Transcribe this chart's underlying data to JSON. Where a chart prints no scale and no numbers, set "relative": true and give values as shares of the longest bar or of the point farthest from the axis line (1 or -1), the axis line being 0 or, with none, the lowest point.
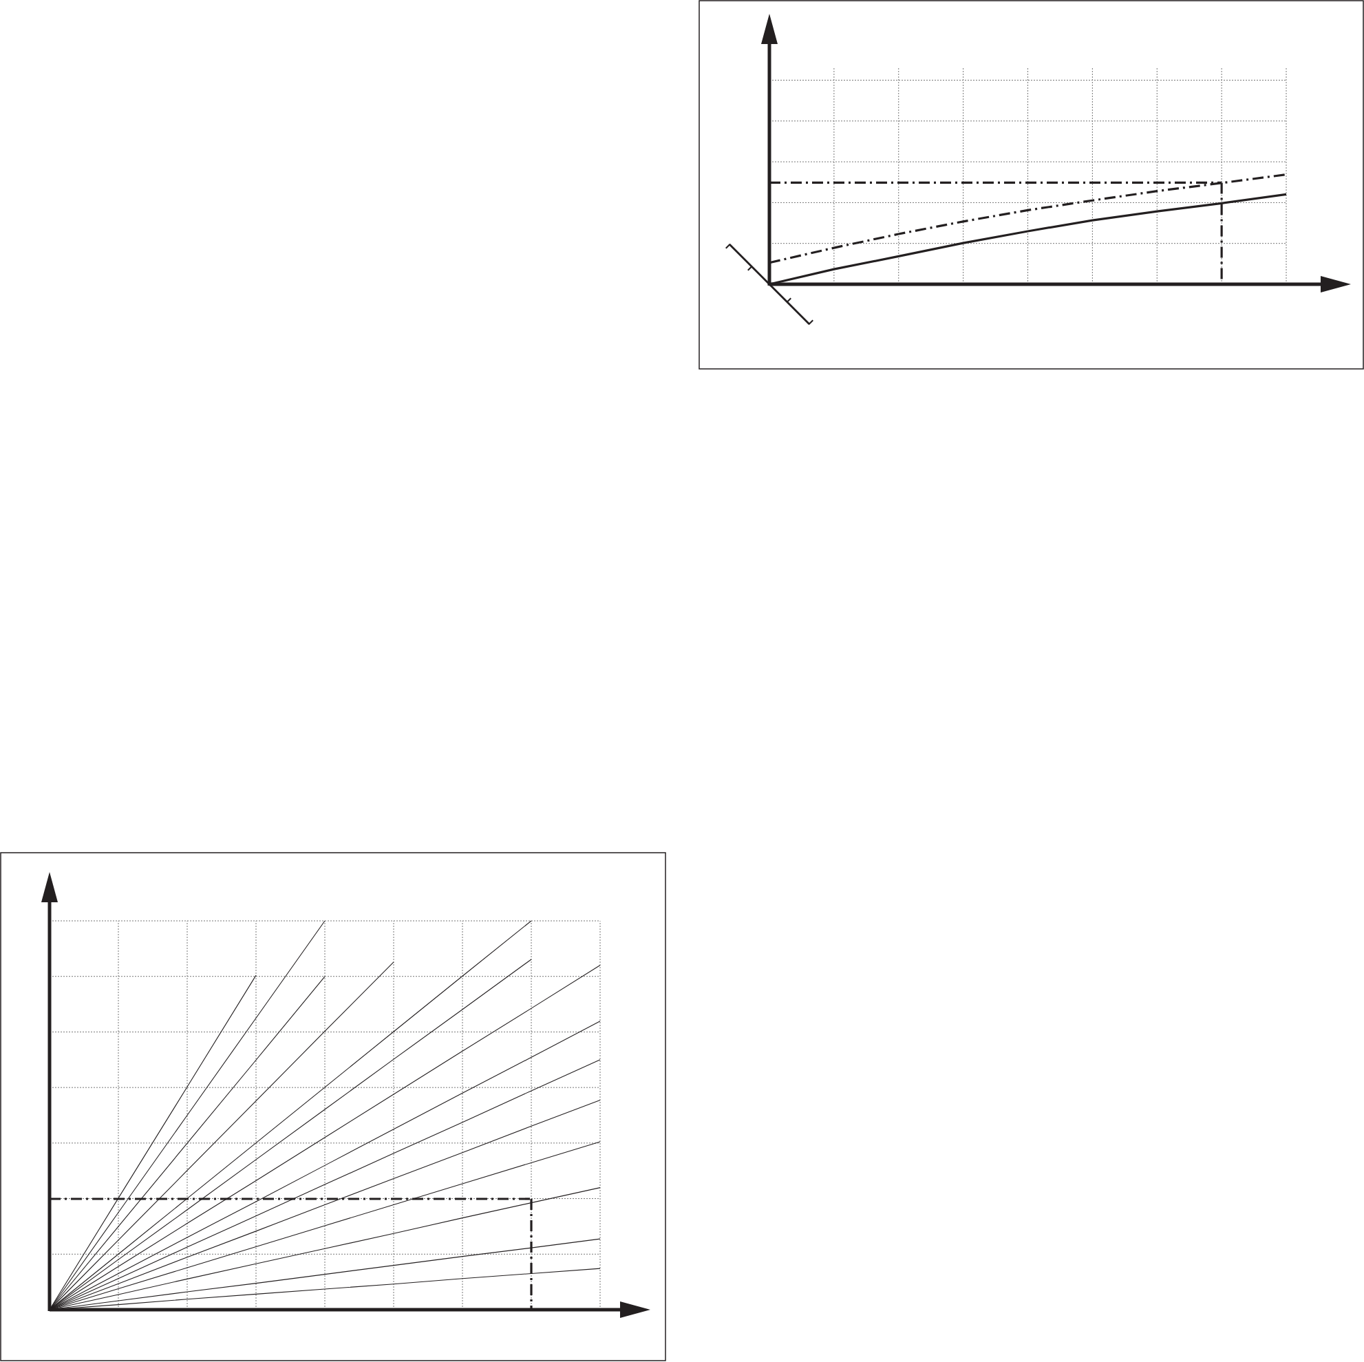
{
  "chart_data": [
    {
      "type": "line",
      "relative": true,
      "categories": [
        null,
        null,
        null,
        null,
        null,
        null,
        null,
        null,
        null
      ],
      "grid": true,
      "series": [
        {
          "color": "#231f20",
          "line_style": "solid",
          "values": [
            0,
            0.137,
            0.255,
            0.376,
            0.483,
            0.583,
            0.664,
            0.738,
            0.819
          ]
        },
        {
          "color": "#231f20",
          "line_style": "dashed",
          "values": [
            0.196,
            0.332,
            0.458,
            0.572,
            0.675,
            0.764,
            0.849,
            0.923,
            1
          ]
        }
      ],
      "ref_lines": [
        {
          "axis": "y",
          "value": 0.926,
          "color": "#231f20",
          "line_style": "dashed"
        }
      ]
    },
    {
      "type": "line",
      "relative": true,
      "categories": [
        null,
        null,
        null,
        null,
        null,
        null,
        null,
        null,
        null
      ],
      "grid": true,
      "series": [
        {
          "color": "#231f20",
          "values": [
            0,
            0.287,
            0.573,
            0.86,
            null,
            null,
            null,
            null,
            null
          ]
        },
        {
          "color": "#231f20",
          "values": [
            0,
            0.25,
            0.5,
            0.75,
            1,
            null,
            null,
            null,
            null
          ]
        },
        {
          "color": "#231f20",
          "values": [
            0,
            0.214,
            0.428,
            0.642,
            0.857,
            null,
            null,
            null,
            null
          ]
        },
        {
          "color": "#231f20",
          "values": [
            0,
            0.179,
            0.358,
            0.537,
            0.716,
            0.894,
            null,
            null,
            null
          ]
        },
        {
          "color": "#231f20",
          "values": [
            0,
            0.143,
            0.286,
            0.429,
            0.572,
            0.715,
            0.858,
            1,
            null
          ]
        },
        {
          "color": "#231f20",
          "values": [
            0,
            0.129,
            0.257,
            0.386,
            0.515,
            0.644,
            0.772,
            0.901,
            null
          ]
        },
        {
          "color": "#231f20",
          "values": [
            0,
            0.111,
            0.222,
            0.332,
            0.443,
            0.554,
            0.665,
            0.775,
            0.886
          ]
        },
        {
          "color": "#231f20",
          "values": [
            0,
            0.093,
            0.186,
            0.278,
            0.371,
            0.464,
            0.557,
            0.649,
            0.742
          ]
        },
        {
          "color": "#231f20",
          "values": [
            0,
            0.08,
            0.161,
            0.241,
            0.322,
            0.402,
            0.482,
            0.563,
            0.643
          ]
        },
        {
          "color": "#231f20",
          "values": [
            0,
            0.067,
            0.135,
            0.202,
            0.27,
            0.337,
            0.404,
            0.472,
            0.539
          ]
        },
        {
          "color": "#231f20",
          "values": [
            0,
            0.054,
            0.108,
            0.162,
            0.216,
            0.27,
            0.324,
            0.378,
            0.432
          ]
        },
        {
          "color": "#231f20",
          "values": [
            0,
            0.039,
            0.079,
            0.118,
            0.157,
            0.196,
            0.236,
            0.275,
            0.314
          ]
        },
        {
          "color": "#231f20",
          "values": [
            0,
            0.023,
            0.046,
            0.068,
            0.091,
            0.114,
            0.137,
            0.159,
            0.182
          ]
        },
        {
          "color": "#231f20",
          "values": [
            0,
            0.013,
            0.027,
            0.04,
            0.053,
            0.066,
            0.08,
            0.093,
            0.106
          ]
        }
      ],
      "ref_lines": [
        {
          "axis": "y",
          "value": 0.285,
          "color": "#231f20",
          "line_style": "dashed"
        }
      ]
    }
  ]
}
